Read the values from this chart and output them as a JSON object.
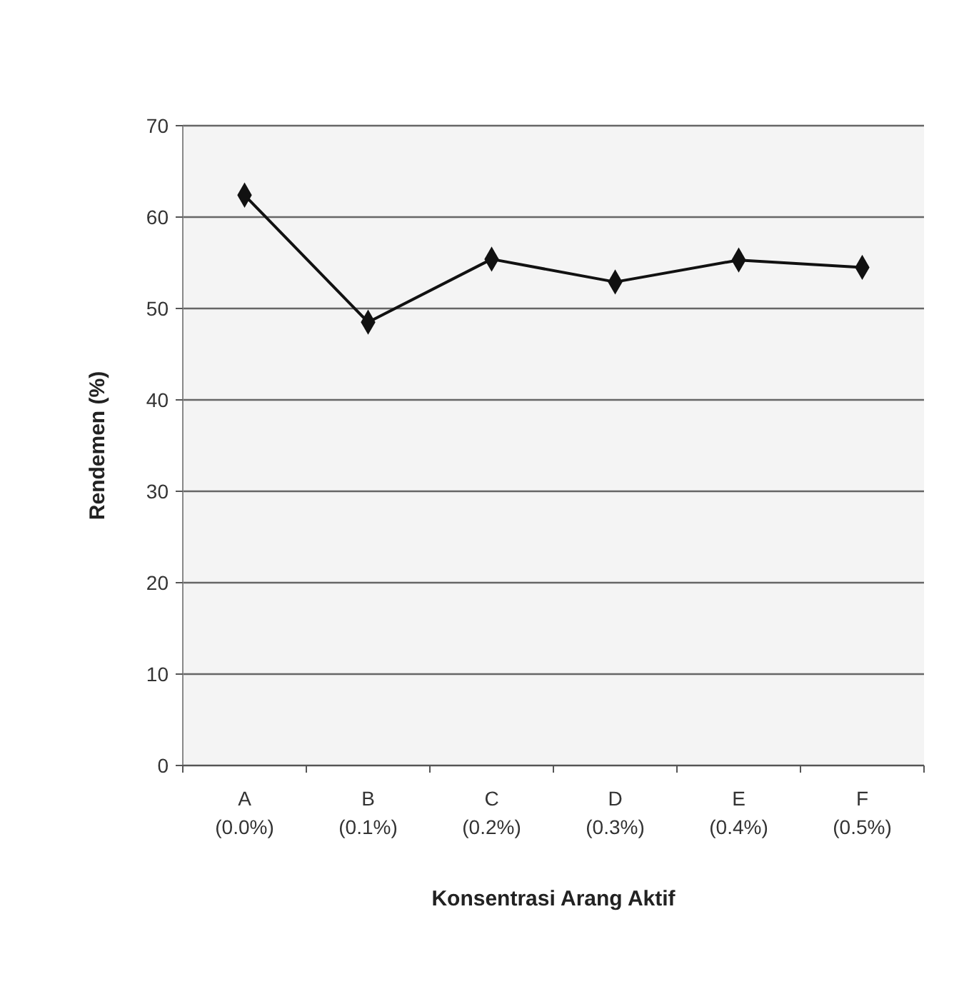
{
  "chart_data": {
    "type": "line",
    "xlabel": "Konsentrasi Arang Aktif",
    "ylabel": "Rendemen (%)",
    "categories": [
      "A\n(0.0%)",
      "B\n(0.1%)",
      "C\n(0.2%)",
      "D\n(0.3%)",
      "E\n(0.4%)",
      "F\n(0.5%)"
    ],
    "series": [
      {
        "color": "#111111",
        "values": [
          62.4,
          48.5,
          55.4,
          52.9,
          55.3,
          54.5
        ]
      }
    ],
    "ylim": [
      0,
      70
    ],
    "yticks": [
      0,
      10,
      20,
      30,
      40,
      50,
      60,
      70
    ],
    "grid": "y",
    "marker": "diamond",
    "line_style": "solid"
  }
}
